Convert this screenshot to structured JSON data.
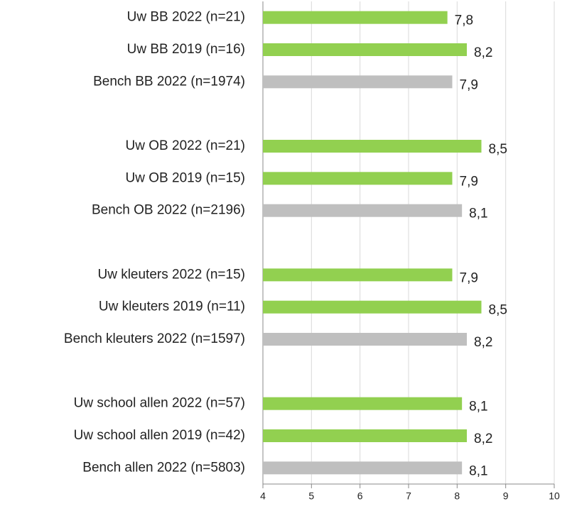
{
  "chart_data": {
    "type": "hbar",
    "categories": [
      "Uw BB 2022 (n=21)",
      "Uw BB 2019 (n=16)",
      "Bench BB 2022 (n=1974)",
      null,
      "Uw OB 2022 (n=21)",
      "Uw OB 2019 (n=15)",
      "Bench OB 2022 (n=2196)",
      null,
      "Uw kleuters 2022 (n=15)",
      "Uw kleuters 2019 (n=11)",
      "Bench kleuters 2022 (n=1597)",
      null,
      "Uw school allen 2022 (n=57)",
      "Uw school allen 2019 (n=42)",
      "Bench allen 2022 (n=5803)"
    ],
    "values": [
      7.8,
      8.2,
      7.9,
      null,
      8.5,
      7.9,
      8.1,
      null,
      7.9,
      8.5,
      8.2,
      null,
      8.1,
      8.2,
      8.1
    ],
    "value_labels": [
      "7,8",
      "8,2",
      "7,9",
      null,
      "8,5",
      "7,9",
      "8,1",
      null,
      "7,9",
      "8,5",
      "8,2",
      null,
      "8,1",
      "8,2",
      "8,1"
    ],
    "colors": [
      "#92d050",
      "#92d050",
      "#bfbfbf",
      null,
      "#92d050",
      "#92d050",
      "#bfbfbf",
      null,
      "#92d050",
      "#92d050",
      "#bfbfbf",
      null,
      "#92d050",
      "#92d050",
      "#bfbfbf"
    ],
    "xlim": [
      4,
      10
    ],
    "xticks": [
      4,
      5,
      6,
      7,
      8,
      9,
      10
    ],
    "grid": true
  }
}
